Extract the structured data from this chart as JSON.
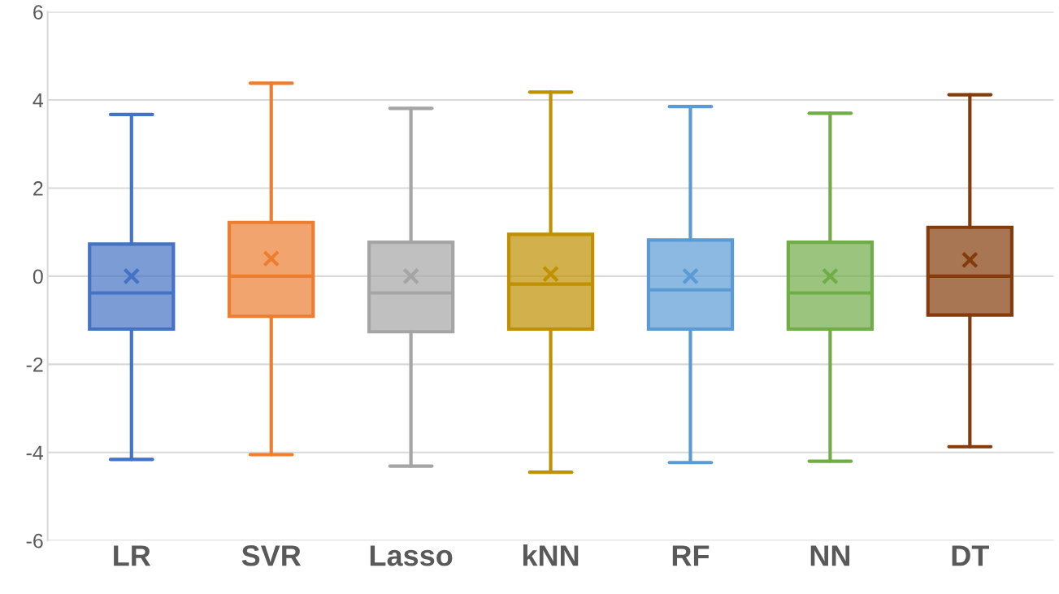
{
  "chart_data": {
    "type": "box",
    "categories": [
      "LR",
      "SVR",
      "Lasso",
      "kNN",
      "RF",
      "NN",
      "DT"
    ],
    "boxes": [
      {
        "low": -4.16,
        "q1": -1.2,
        "median": -0.38,
        "q3": 0.73,
        "high": 3.67,
        "mean": 0.0
      },
      {
        "low": -4.05,
        "q1": -0.91,
        "median": 0.0,
        "q3": 1.22,
        "high": 4.38,
        "mean": 0.4
      },
      {
        "low": -4.31,
        "q1": -1.26,
        "median": -0.38,
        "q3": 0.77,
        "high": 3.81,
        "mean": 0.0
      },
      {
        "low": -4.45,
        "q1": -1.2,
        "median": -0.18,
        "q3": 0.95,
        "high": 4.18,
        "mean": 0.05
      },
      {
        "low": -4.23,
        "q1": -1.2,
        "median": -0.31,
        "q3": 0.82,
        "high": 3.85,
        "mean": 0.0
      },
      {
        "low": -4.2,
        "q1": -1.2,
        "median": -0.38,
        "q3": 0.77,
        "high": 3.7,
        "mean": 0.0
      },
      {
        "low": -3.87,
        "q1": -0.88,
        "median": 0.0,
        "q3": 1.11,
        "high": 4.12,
        "mean": 0.37
      }
    ],
    "colors": [
      "#4472c4",
      "#ed7d31",
      "#a5a5a5",
      "#bf9000",
      "#5b9bd5",
      "#70ad47",
      "#843c0c"
    ],
    "ylim": [
      -6,
      6
    ],
    "yticks": [
      -6,
      -4,
      -2,
      0,
      2,
      4,
      6
    ],
    "grid": "y",
    "marker": "cross"
  }
}
